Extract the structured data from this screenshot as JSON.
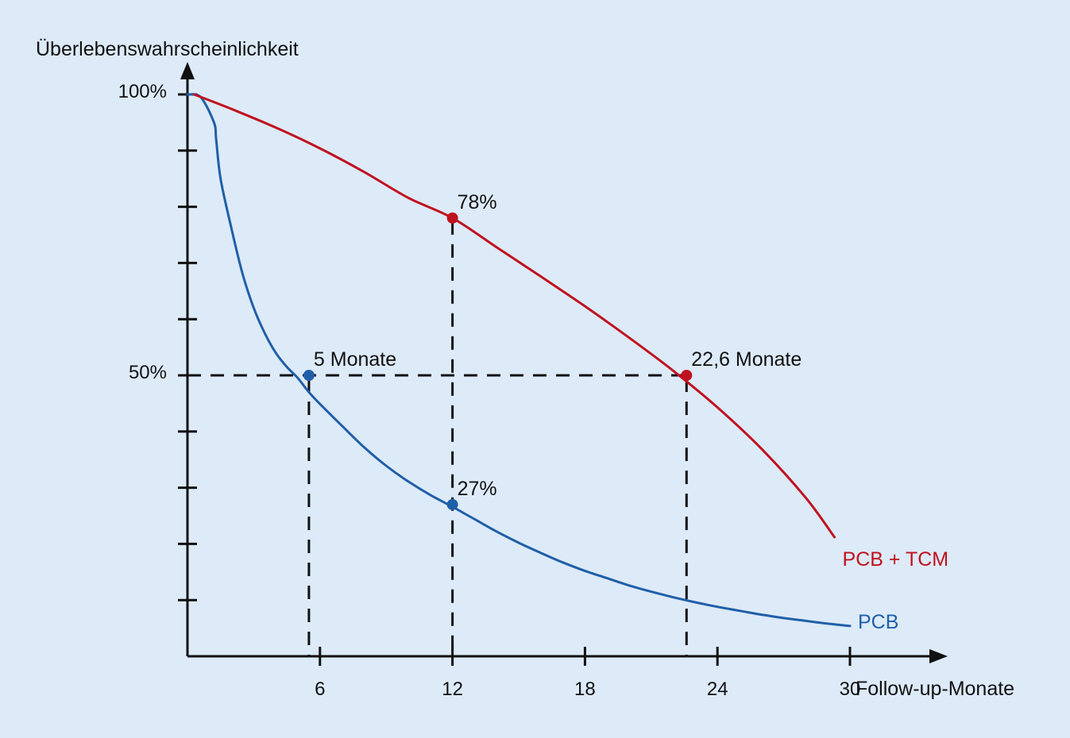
{
  "chart_data": {
    "type": "line",
    "title": "",
    "ylabel": "Überlebenswahrscheinlichkeit",
    "xlabel": "Follow-up-Monate",
    "xlim": [
      0,
      35
    ],
    "ylim": [
      0,
      100
    ],
    "x_ticks": [
      6,
      12,
      18,
      24,
      30
    ],
    "y_tick_labels": [
      {
        "value": 100,
        "label": "100%"
      },
      {
        "value": 50,
        "label": "50%"
      }
    ],
    "y_minor_ticks": [
      10,
      20,
      30,
      40,
      50,
      60,
      70,
      80,
      90,
      100
    ],
    "grid": false,
    "series": [
      {
        "name": "PCB",
        "color": "#1f5fa8",
        "x": [
          0,
          0.6,
          1.2,
          1.3,
          1.5,
          2.0,
          2.5,
          3.0,
          3.5,
          4.0,
          4.5,
          5.0,
          5.5,
          6.0,
          7.0,
          8.0,
          9.0,
          10.0,
          11.0,
          12.0,
          13.0,
          14.0,
          15.0,
          16.0,
          17.0,
          18.0,
          19.0,
          20.0,
          21.0,
          22.0,
          23.0,
          24.0,
          25.0,
          26.0,
          27.0,
          28.0,
          29.0,
          30.0
        ],
        "y": [
          100,
          99.5,
          95,
          92,
          85,
          76,
          68,
          62,
          57.5,
          54,
          51.5,
          49.5,
          47,
          44.9,
          41,
          37.2,
          33.9,
          31.1,
          28.7,
          26.6,
          24.4,
          22.2,
          20.2,
          18.4,
          16.7,
          15.2,
          13.9,
          12.6,
          11.5,
          10.5,
          9.6,
          8.8,
          8.1,
          7.4,
          6.8,
          6.3,
          5.8,
          5.4
        ]
      },
      {
        "name": "PCB + TCM",
        "color": "#c0111f",
        "x": [
          0.3,
          2,
          4,
          6,
          8,
          10,
          12,
          14,
          16,
          18,
          20,
          22,
          24,
          26,
          28,
          29.3
        ],
        "y": [
          100,
          97.4,
          94.1,
          90.4,
          86.2,
          81.6,
          78,
          72.8,
          67.6,
          62.3,
          56.7,
          50.8,
          44.3,
          36.9,
          28.2,
          21.2
        ]
      }
    ],
    "reference_lines": [
      {
        "type": "horizontal",
        "y": 50,
        "x_from": 0,
        "x_to": 22.6
      },
      {
        "type": "vertical",
        "x": 5.5,
        "y_from": 0,
        "y_to": 50
      },
      {
        "type": "vertical",
        "x": 12,
        "y_from": 0,
        "y_to": 78
      },
      {
        "type": "vertical",
        "x": 22.6,
        "y_from": 0,
        "y_to": 50
      }
    ],
    "markers": [
      {
        "series": "PCB",
        "x": 5.5,
        "y": 50,
        "label": "5 Monate"
      },
      {
        "series": "PCB",
        "x": 12,
        "y": 27,
        "label": "27%"
      },
      {
        "series": "PCB + TCM",
        "x": 12,
        "y": 78,
        "label": "78%"
      },
      {
        "series": "PCB + TCM",
        "x": 22.6,
        "y": 50,
        "label": "22,6 Monate"
      }
    ]
  }
}
